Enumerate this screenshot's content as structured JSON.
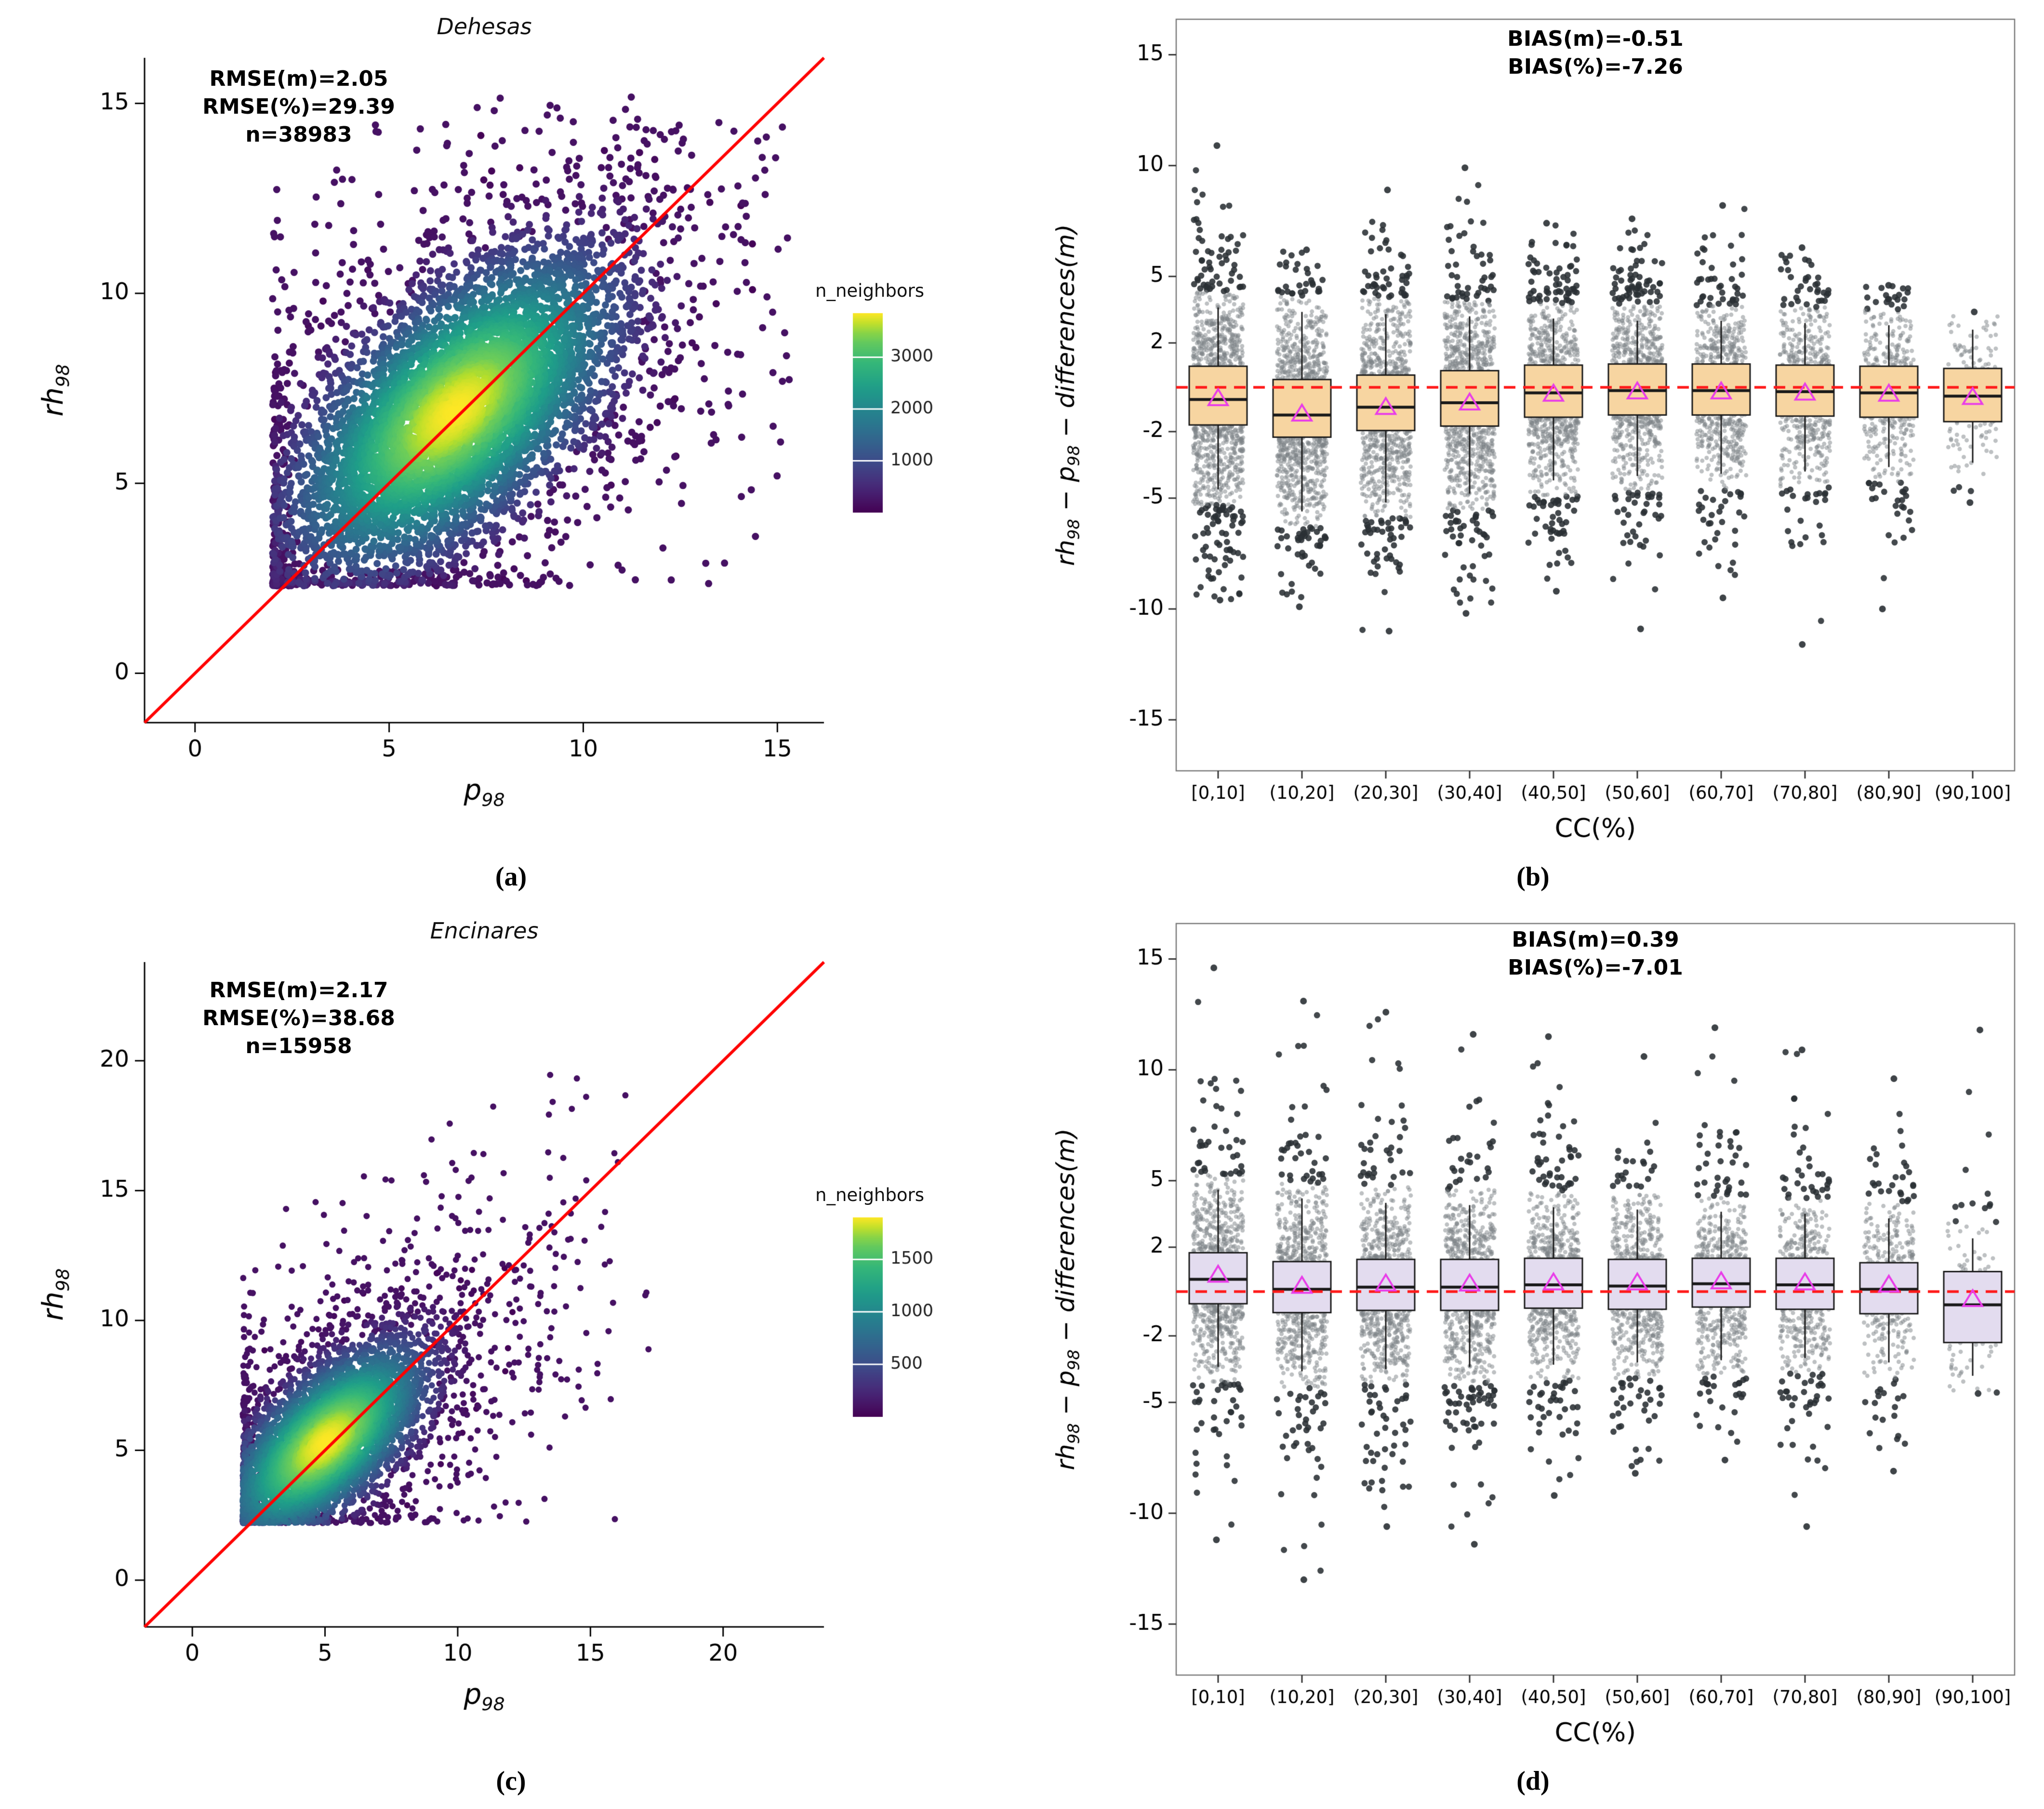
{
  "captions": {
    "a": "(a)",
    "b": "(b)",
    "c": "(c)",
    "d": "(d)"
  },
  "chart_data": [
    {
      "id": "a",
      "type": "scatter",
      "variant": "density",
      "title": "Dehesas",
      "annotation": [
        "RMSE(m)=2.05",
        "RMSE(%)=29.39",
        "n=38983"
      ],
      "xlabel_parts": [
        {
          "t": "p"
        },
        {
          "t": "98",
          "sub": true
        }
      ],
      "ylabel_parts": [
        {
          "t": "rh"
        },
        {
          "t": "98",
          "sub": true
        }
      ],
      "xlim": [
        -1.3,
        16.2
      ],
      "ylim": [
        -1.3,
        16.2
      ],
      "xticks": [
        0,
        5,
        10,
        15
      ],
      "yticks": [
        0,
        5,
        10,
        15
      ],
      "identity_line": {
        "color": "#ff0000"
      },
      "colorbar": {
        "title": "n_neighbors",
        "ticks": [
          1000,
          2000,
          3000
        ],
        "vmax": 3850,
        "palette": "viridis"
      },
      "cloud": {
        "center": [
          6.7,
          6.9
        ],
        "sd_major": 2.7,
        "sd_minor": 1.35,
        "floor_x": 2.0,
        "floor_y": 2.3,
        "max_x": 15.4,
        "max_y": 15.2,
        "n_core": 6200,
        "n_outer": 750,
        "outer_scale": 2.35,
        "seed": 11,
        "dot_r": 7.5
      }
    },
    {
      "id": "b",
      "type": "box",
      "annotation": [
        "BIAS(m)=-0.51",
        "BIAS(%)=-7.26"
      ],
      "xlabel": "CC(%)",
      "ylabel_parts": [
        {
          "t": "rh"
        },
        {
          "t": "98",
          "sub": true
        },
        {
          "t": " − p"
        },
        {
          "t": "98",
          "sub": true
        },
        {
          "t": " − differences(m)"
        }
      ],
      "ylim": [
        -17.3,
        16.6
      ],
      "yticks": [
        15,
        10,
        5,
        2,
        -2,
        -5,
        -10,
        -15
      ],
      "categories": [
        "[0,10]",
        "(10,20]",
        "(20,30]",
        "(30,40]",
        "(40,50]",
        "(50,60]",
        "(60,70]",
        "(70,80]",
        "(80,90]",
        "(90,100]"
      ],
      "box_fill": "#F7D5A1",
      "ref_line": {
        "y": 0,
        "color": "#ff1a1a",
        "dashed": true
      },
      "mean_marker_color": "#e93ce9",
      "point_color": "#7d8488",
      "seed": 22,
      "boxes": [
        {
          "q1": -1.7,
          "median": -0.55,
          "q3": 0.95,
          "whisker_low": -4.6,
          "whisker_high": 3.6,
          "min": -9.6,
          "max": 10.9,
          "mean": -0.5,
          "n": 1250
        },
        {
          "q1": -2.25,
          "median": -1.25,
          "q3": 0.35,
          "whisker_low": -5.6,
          "whisker_high": 3.4,
          "min": -9.9,
          "max": 6.2,
          "mean": -1.2,
          "n": 1150
        },
        {
          "q1": -1.95,
          "median": -0.9,
          "q3": 0.55,
          "whisker_low": -5.2,
          "whisker_high": 3.3,
          "min": -11.0,
          "max": 8.9,
          "mean": -0.9,
          "n": 1050
        },
        {
          "q1": -1.75,
          "median": -0.7,
          "q3": 0.75,
          "whisker_low": -4.8,
          "whisker_high": 3.2,
          "min": -10.2,
          "max": 9.9,
          "mean": -0.7,
          "n": 1050
        },
        {
          "q1": -1.35,
          "median": -0.25,
          "q3": 1.0,
          "whisker_low": -4.2,
          "whisker_high": 3.1,
          "min": -9.2,
          "max": 7.4,
          "mean": -0.3,
          "n": 950
        },
        {
          "q1": -1.25,
          "median": -0.15,
          "q3": 1.05,
          "whisker_low": -4.0,
          "whisker_high": 3.0,
          "min": -10.9,
          "max": 7.6,
          "mean": -0.2,
          "n": 850
        },
        {
          "q1": -1.25,
          "median": -0.15,
          "q3": 1.05,
          "whisker_low": -3.9,
          "whisker_high": 3.0,
          "min": -9.5,
          "max": 8.2,
          "mean": -0.2,
          "n": 750
        },
        {
          "q1": -1.3,
          "median": -0.2,
          "q3": 1.0,
          "whisker_low": -3.8,
          "whisker_high": 2.9,
          "min": -11.6,
          "max": 6.3,
          "mean": -0.25,
          "n": 620
        },
        {
          "q1": -1.35,
          "median": -0.25,
          "q3": 0.95,
          "whisker_low": -3.6,
          "whisker_high": 2.8,
          "min": -10.0,
          "max": 4.6,
          "mean": -0.3,
          "n": 470
        },
        {
          "q1": -1.55,
          "median": -0.4,
          "q3": 0.85,
          "whisker_low": -3.4,
          "whisker_high": 2.6,
          "min": -5.2,
          "max": 3.4,
          "mean": -0.45,
          "n": 150
        }
      ]
    },
    {
      "id": "c",
      "type": "scatter",
      "variant": "density",
      "title": "Encinares",
      "annotation": [
        "RMSE(m)=2.17",
        "RMSE(%)=38.68",
        "n=15958"
      ],
      "xlabel_parts": [
        {
          "t": "p"
        },
        {
          "t": "98",
          "sub": true
        }
      ],
      "ylabel_parts": [
        {
          "t": "rh"
        },
        {
          "t": "98",
          "sub": true
        }
      ],
      "xlim": [
        -1.8,
        23.8
      ],
      "ylim": [
        -1.8,
        23.8
      ],
      "xticks": [
        0,
        5,
        10,
        15,
        20
      ],
      "yticks": [
        0,
        5,
        10,
        15,
        20
      ],
      "identity_line": {
        "color": "#ff0000"
      },
      "colorbar": {
        "title": "n_neighbors",
        "ticks": [
          500,
          1000,
          1500
        ],
        "vmax": 1900,
        "palette": "viridis"
      },
      "cloud": {
        "center": [
          5.0,
          5.3
        ],
        "sd_major": 2.5,
        "sd_minor": 1.15,
        "floor_x": 1.9,
        "floor_y": 2.2,
        "max_x": 17.6,
        "max_y": 19.6,
        "n_core": 5200,
        "n_outer": 850,
        "outer_scale": 2.5,
        "seed": 33,
        "dot_r": 6.5
      }
    },
    {
      "id": "d",
      "type": "box",
      "annotation": [
        "BIAS(m)=0.39",
        "BIAS(%)=-7.01"
      ],
      "xlabel": "CC(%)",
      "ylabel_parts": [
        {
          "t": "rh"
        },
        {
          "t": "98",
          "sub": true
        },
        {
          "t": " − p"
        },
        {
          "t": "98",
          "sub": true
        },
        {
          "t": " − differences(m)"
        }
      ],
      "ylim": [
        -17.3,
        16.6
      ],
      "yticks": [
        15,
        10,
        5,
        2,
        -2,
        -5,
        -10,
        -15
      ],
      "categories": [
        "[0,10]",
        "(10,20]",
        "(20,30]",
        "(30,40]",
        "(40,50]",
        "(50,60]",
        "(60,70]",
        "(70,80]",
        "(80,90]",
        "(90,100]"
      ],
      "box_fill": "#E3DCEF",
      "ref_line": {
        "y": 0,
        "color": "#ff1a1a",
        "dashed": true
      },
      "mean_marker_color": "#e93ce9",
      "point_color": "#7d8488",
      "seed": 44,
      "boxes": [
        {
          "q1": -0.55,
          "median": 0.55,
          "q3": 1.75,
          "whisker_low": -3.4,
          "whisker_high": 4.6,
          "min": -11.2,
          "max": 14.6,
          "mean": 0.75,
          "n": 900
        },
        {
          "q1": -0.95,
          "median": 0.1,
          "q3": 1.35,
          "whisker_low": -3.6,
          "whisker_high": 4.2,
          "min": -13.0,
          "max": 13.1,
          "mean": 0.25,
          "n": 850
        },
        {
          "q1": -0.85,
          "median": 0.2,
          "q3": 1.45,
          "whisker_low": -3.5,
          "whisker_high": 4.0,
          "min": -10.6,
          "max": 12.6,
          "mean": 0.35,
          "n": 850
        },
        {
          "q1": -0.85,
          "median": 0.2,
          "q3": 1.45,
          "whisker_low": -3.4,
          "whisker_high": 3.9,
          "min": -11.4,
          "max": 11.6,
          "mean": 0.35,
          "n": 850
        },
        {
          "q1": -0.75,
          "median": 0.3,
          "q3": 1.5,
          "whisker_low": -3.3,
          "whisker_high": 3.8,
          "min": -9.2,
          "max": 11.5,
          "mean": 0.4,
          "n": 750
        },
        {
          "q1": -0.8,
          "median": 0.25,
          "q3": 1.45,
          "whisker_low": -3.2,
          "whisker_high": 3.7,
          "min": -8.2,
          "max": 10.6,
          "mean": 0.4,
          "n": 700
        },
        {
          "q1": -0.7,
          "median": 0.35,
          "q3": 1.5,
          "whisker_low": -3.1,
          "whisker_high": 3.6,
          "min": -7.6,
          "max": 11.9,
          "mean": 0.45,
          "n": 650
        },
        {
          "q1": -0.8,
          "median": 0.3,
          "q3": 1.5,
          "whisker_low": -3.0,
          "whisker_high": 3.5,
          "min": -10.6,
          "max": 10.9,
          "mean": 0.4,
          "n": 550
        },
        {
          "q1": -1.0,
          "median": 0.1,
          "q3": 1.3,
          "whisker_low": -3.2,
          "whisker_high": 3.3,
          "min": -8.1,
          "max": 9.6,
          "mean": 0.3,
          "n": 420
        },
        {
          "q1": -2.3,
          "median": -0.6,
          "q3": 0.9,
          "whisker_low": -3.8,
          "whisker_high": 2.4,
          "min": -4.6,
          "max": 11.8,
          "mean": -0.35,
          "n": 130
        }
      ]
    }
  ]
}
